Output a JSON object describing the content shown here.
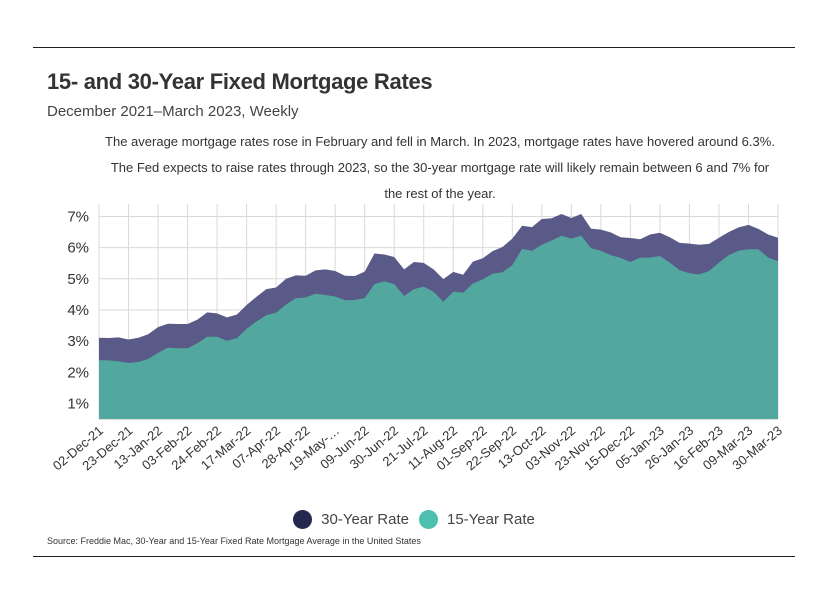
{
  "header": {
    "title": "15- and 30-Year Fixed Mortgage Rates",
    "subtitle": "December 2021–March 2023, Weekly",
    "annotation_line1": "The average mortgage rates rose in February and fell in March. In 2023, mortgage rates have hovered around 6.3%.",
    "annotation_line2": "The Fed expects to raise rates through 2023, so the 30-year mortgage rate will likely remain between 6 and 7% for",
    "annotation_line3": "the rest of the year."
  },
  "legend": {
    "item1": "30-Year Rate",
    "item2": "15-Year Rate"
  },
  "footer": {
    "source": "Source:  Freddie Mac, 30-Year  and 15-Year Fixed Rate Mortgage Average in the United States"
  },
  "colors": {
    "rate30": "#5a5a88",
    "rate15": "#52a89e",
    "rate30_legend": "#23284f",
    "rate15_legend": "#4cbfae",
    "grid": "#d9d9d9"
  },
  "chart_data": {
    "type": "area",
    "y_tick_labels": [
      "1%",
      "2%",
      "3%",
      "4%",
      "5%",
      "6%",
      "7%"
    ],
    "ylim": [
      0.5,
      7.4
    ],
    "x_tick_labels": [
      "02-Dec-21",
      "23-Dec-21",
      "13-Jan-22",
      "03-Feb-22",
      "24-Feb-22",
      "17-Mar-22",
      "07-Apr-22",
      "28-Apr-22",
      "19-May-…",
      "09-Jun-22",
      "30-Jun-22",
      "21-Jul-22",
      "11-Aug-22",
      "01-Sep-22",
      "22-Sep-22",
      "13-Oct-22",
      "03-Nov-22",
      "23-Nov-22",
      "15-Dec-22",
      "05-Jan-23",
      "26-Jan-23",
      "16-Feb-23",
      "09-Mar-23",
      "30-Mar-23"
    ],
    "grid": true,
    "legend_position": "bottom",
    "series": [
      {
        "name": "30-Year Rate",
        "values": [
          3.11,
          3.1,
          3.12,
          3.05,
          3.11,
          3.22,
          3.45,
          3.56,
          3.55,
          3.55,
          3.69,
          3.92,
          3.89,
          3.76,
          3.85,
          4.16,
          4.42,
          4.67,
          4.72,
          5.0,
          5.11,
          5.1,
          5.27,
          5.3,
          5.25,
          5.1,
          5.09,
          5.23,
          5.81,
          5.78,
          5.7,
          5.3,
          5.54,
          5.51,
          5.3,
          4.99,
          5.22,
          5.13,
          5.55,
          5.66,
          5.89,
          6.02,
          6.29,
          6.7,
          6.66,
          6.92,
          6.94,
          7.08,
          6.95,
          7.08,
          6.61,
          6.58,
          6.49,
          6.33,
          6.31,
          6.27,
          6.42,
          6.48,
          6.33,
          6.15,
          6.13,
          6.09,
          6.12,
          6.32,
          6.5,
          6.65,
          6.73,
          6.6,
          6.42,
          6.32
        ]
      },
      {
        "name": "15-Year Rate",
        "values": [
          2.39,
          2.38,
          2.35,
          2.3,
          2.33,
          2.43,
          2.62,
          2.79,
          2.77,
          2.77,
          2.93,
          3.14,
          3.14,
          3.01,
          3.09,
          3.39,
          3.63,
          3.83,
          3.91,
          4.17,
          4.38,
          4.4,
          4.52,
          4.48,
          4.43,
          4.31,
          4.32,
          4.38,
          4.83,
          4.92,
          4.83,
          4.45,
          4.67,
          4.75,
          4.58,
          4.26,
          4.59,
          4.55,
          4.85,
          4.98,
          5.16,
          5.21,
          5.44,
          5.96,
          5.9,
          6.09,
          6.23,
          6.38,
          6.29,
          6.38,
          5.98,
          5.9,
          5.76,
          5.67,
          5.54,
          5.68,
          5.68,
          5.73,
          5.52,
          5.28,
          5.18,
          5.14,
          5.25,
          5.52,
          5.76,
          5.9,
          5.95,
          5.95,
          5.68,
          5.56
        ]
      }
    ]
  }
}
